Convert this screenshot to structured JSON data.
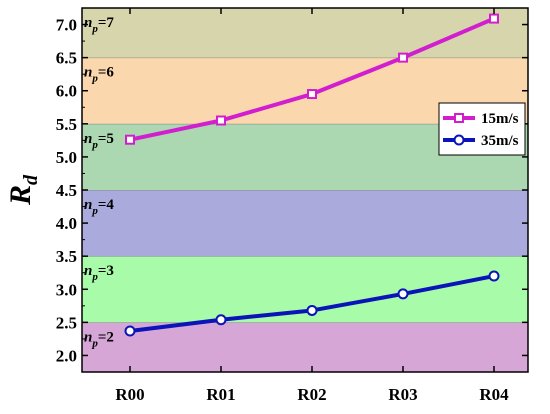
{
  "chart_data": {
    "type": "line",
    "categories": [
      "R00",
      "R01",
      "R02",
      "R03",
      "R04"
    ],
    "ylabel_main": "R",
    "ylabel_sub": "d",
    "ylim": [
      1.75,
      7.25
    ],
    "yticks": [
      2.0,
      2.5,
      3.0,
      3.5,
      4.0,
      4.5,
      5.0,
      5.5,
      6.0,
      6.5,
      7.0
    ],
    "ytick_labels": [
      "2.0",
      "2.5",
      "3.0",
      "3.5",
      "4.0",
      "4.5",
      "5.0",
      "5.5",
      "6.0",
      "6.5",
      "7.0"
    ],
    "grid": false,
    "legend_position": "right",
    "series": [
      {
        "name": "15m/s",
        "color": "#d11fd0",
        "marker": "square",
        "values": [
          5.26,
          5.55,
          5.95,
          6.5,
          7.09
        ]
      },
      {
        "name": "35m/s",
        "color": "#0a14b8",
        "marker": "circle",
        "values": [
          2.37,
          2.54,
          2.68,
          2.93,
          3.2
        ]
      }
    ],
    "bands": [
      {
        "ymin": 1.75,
        "ymax": 2.5,
        "color": "#d6a6d6",
        "label_main": "n",
        "label_sub": "p",
        "label_eq": "=2"
      },
      {
        "ymin": 2.5,
        "ymax": 3.5,
        "color": "#a8fba8",
        "label_main": "n",
        "label_sub": "p",
        "label_eq": "=3"
      },
      {
        "ymin": 3.5,
        "ymax": 4.5,
        "color": "#abaadc",
        "label_main": "n",
        "label_sub": "p",
        "label_eq": "=4"
      },
      {
        "ymin": 4.5,
        "ymax": 5.5,
        "color": "#acd8b1",
        "label_main": "n",
        "label_sub": "p",
        "label_eq": "=5"
      },
      {
        "ymin": 5.5,
        "ymax": 6.5,
        "color": "#fbd7ae",
        "label_main": "n",
        "label_sub": "p",
        "label_eq": "=6"
      },
      {
        "ymin": 6.5,
        "ymax": 7.25,
        "color": "#d7d5ac",
        "label_main": "n",
        "label_sub": "p",
        "label_eq": "=7"
      }
    ]
  }
}
